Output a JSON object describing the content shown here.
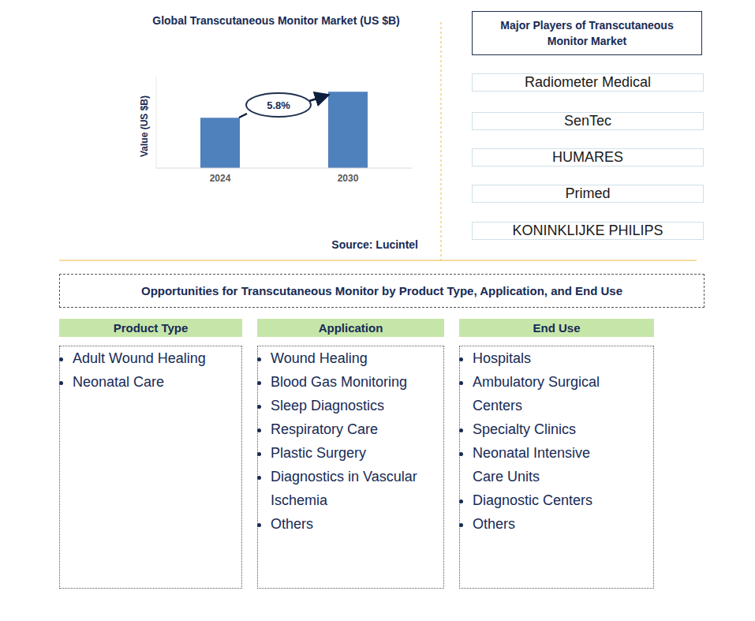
{
  "chart_data": {
    "type": "bar",
    "title": "Global Transcutaneous Monitor Market (US $B)",
    "y_label": "Value (US $B)",
    "categories": [
      "2024",
      "2030"
    ],
    "values": [
      0.66,
      1.0
    ],
    "color": "#4f81bd",
    "ylim": [
      0,
      1.2
    ],
    "tick_labels": "x",
    "annotations": [
      "5.8%"
    ],
    "source": "Source: Lucintel"
  },
  "players": {
    "title": "Major Players of Transcutaneous Monitor Market",
    "items": [
      "Radiometer Medical",
      "SenTec",
      "HUMARES",
      "Primed",
      "KONINKLIJKE PHILIPS"
    ]
  },
  "opportunities": {
    "title": "Opportunities for Transcutaneous Monitor by Product Type, Application, and End Use",
    "columns": [
      {
        "header": "Product Type",
        "items": [
          "Adult Wound Healing",
          "Neonatal Care"
        ]
      },
      {
        "header": "Application",
        "items": [
          "Wound Healing",
          "Blood Gas Monitoring",
          "Sleep Diagnostics",
          "Respiratory Care",
          "Plastic Surgery",
          "Diagnostics in Vascular Ischemia",
          "Others"
        ]
      },
      {
        "header": "End Use",
        "items": [
          "Hospitals",
          "Ambulatory Surgical Centers",
          "Specialty Clinics",
          "Neonatal Intensive Care Units",
          "Diagnostic Centers",
          "Others"
        ]
      }
    ]
  }
}
